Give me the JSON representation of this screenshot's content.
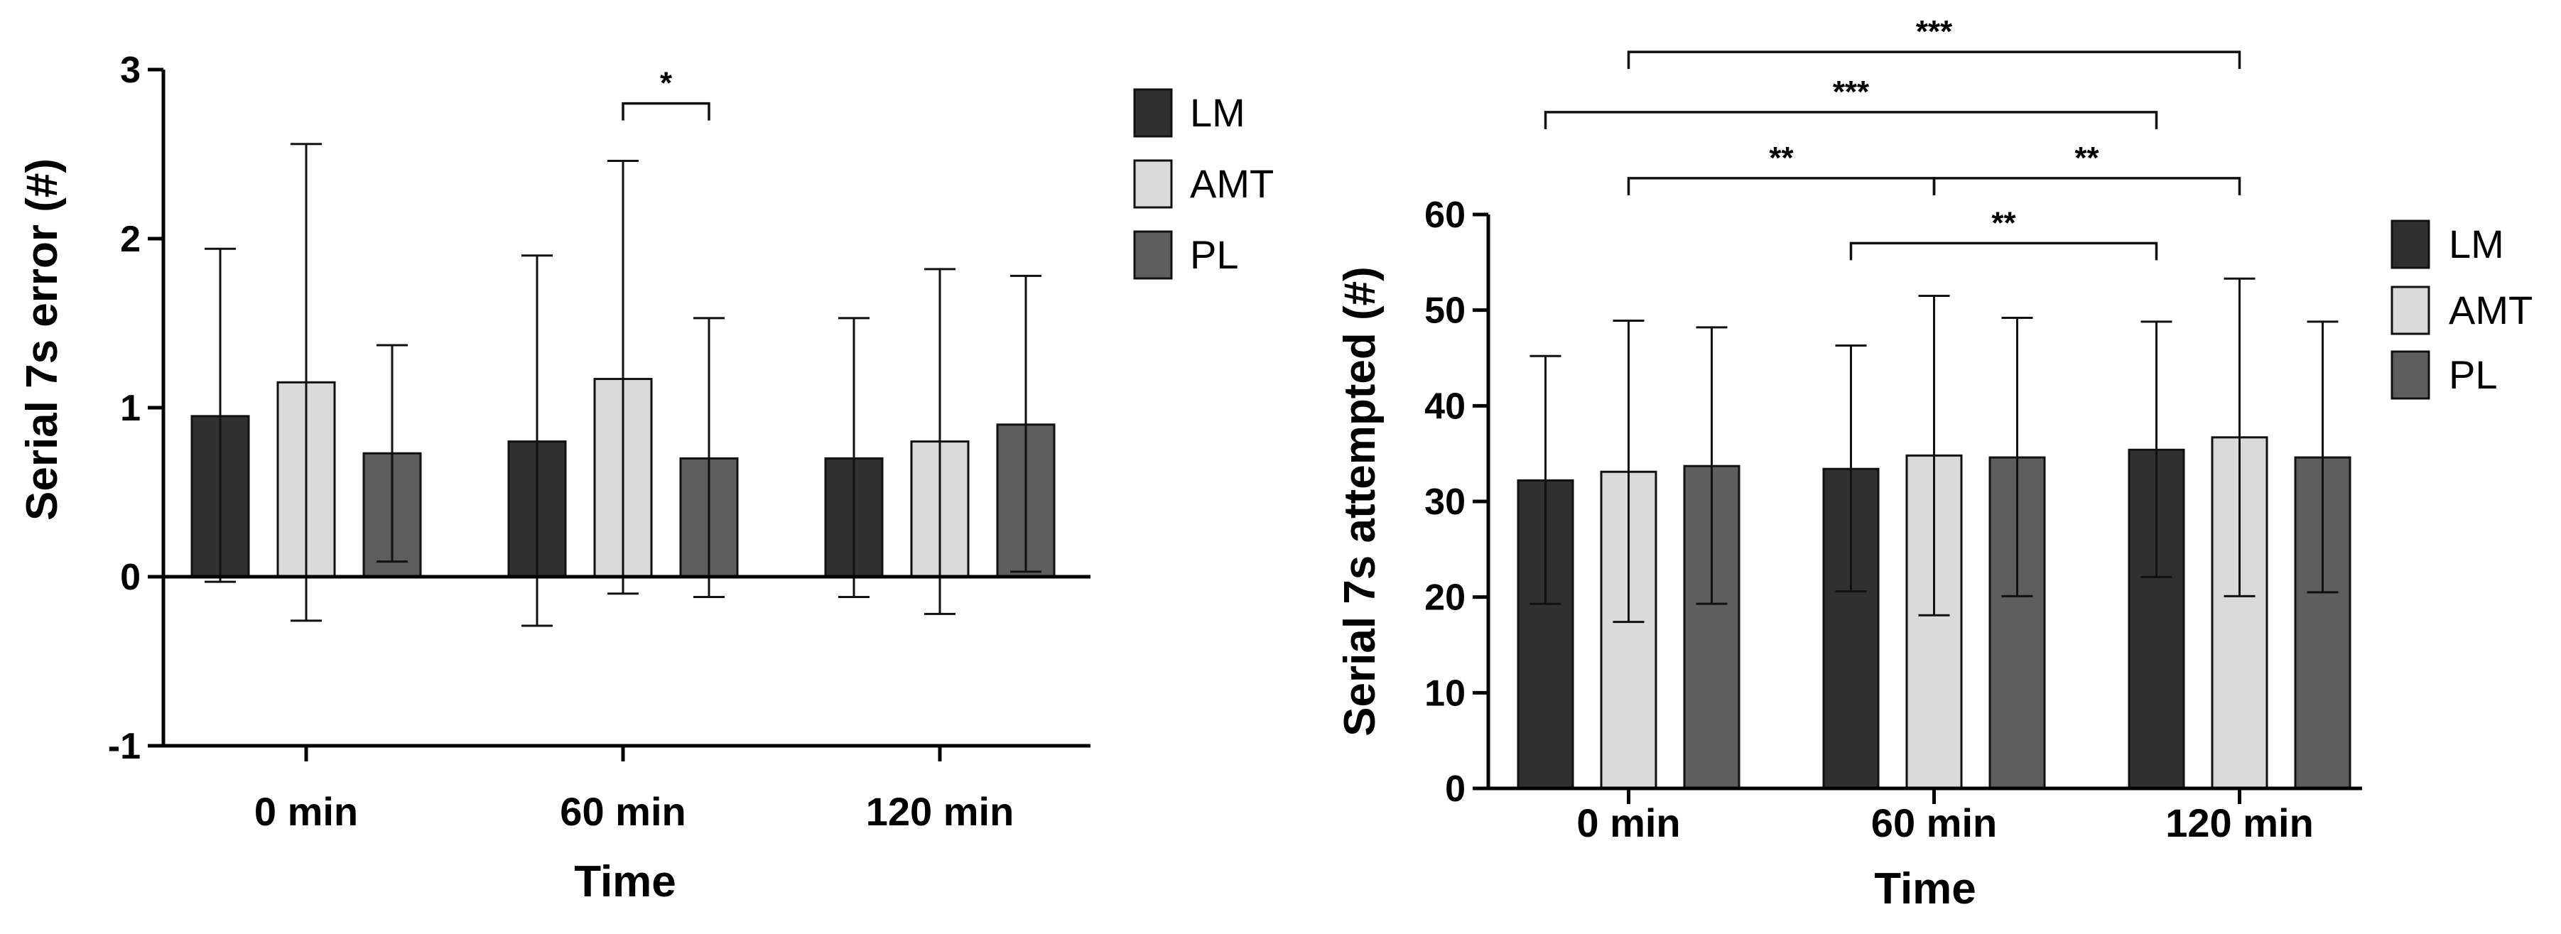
{
  "colors": {
    "LM": "#303030",
    "AMT": "#dadada",
    "PL": "#5e5e5e"
  },
  "chart_data": [
    {
      "type": "bar",
      "title": "",
      "xlabel": "Time",
      "ylabel": "Serial 7s error (#)",
      "ylim": [
        -1,
        3
      ],
      "yticks": [
        -1,
        0,
        1,
        2,
        3
      ],
      "ytick_labels": [
        "-1",
        "0",
        "1",
        "2",
        "3"
      ],
      "categories": [
        "0 min",
        "60 min",
        "120 min"
      ],
      "legend": [
        "LM",
        "AMT",
        "PL"
      ],
      "series": [
        {
          "name": "LM",
          "values": [
            0.95,
            0.8,
            0.7
          ],
          "err_upper": [
            1.94,
            1.9,
            1.53
          ],
          "err_lower": [
            -0.03,
            -0.29,
            -0.12
          ]
        },
        {
          "name": "AMT",
          "values": [
            1.15,
            1.17,
            0.8
          ],
          "err_upper": [
            2.56,
            2.46,
            1.82
          ],
          "err_lower": [
            -0.26,
            -0.1,
            -0.22
          ]
        },
        {
          "name": "PL",
          "values": [
            0.73,
            0.7,
            0.9
          ],
          "err_upper": [
            1.37,
            1.53,
            1.78
          ],
          "err_lower": [
            0.09,
            -0.12,
            0.03
          ]
        }
      ],
      "annotations": [
        {
          "label": "*",
          "from": {
            "category": 1,
            "series": 1
          },
          "to": {
            "category": 1,
            "series": 2
          },
          "y": 2.8
        }
      ]
    },
    {
      "type": "bar",
      "title": "",
      "xlabel": "Time",
      "ylabel": "Serial 7s attempted (#)",
      "ylim": [
        0,
        60
      ],
      "yticks": [
        0,
        10,
        20,
        30,
        40,
        50,
        60
      ],
      "ytick_labels": [
        "0",
        "10",
        "20",
        "30",
        "40",
        "50",
        "60"
      ],
      "categories": [
        "0 min",
        "60 min",
        "120 min"
      ],
      "legend": [
        "LM",
        "AMT",
        "PL"
      ],
      "series": [
        {
          "name": "LM",
          "values": [
            32.2,
            33.4,
            35.4
          ],
          "err_upper": [
            45.2,
            46.3,
            48.8
          ],
          "err_lower": [
            19.3,
            20.6,
            22.1
          ]
        },
        {
          "name": "AMT",
          "values": [
            33.1,
            34.8,
            36.7
          ],
          "err_upper": [
            48.9,
            51.5,
            53.3
          ],
          "err_lower": [
            17.4,
            18.1,
            20.1
          ]
        },
        {
          "name": "PL",
          "values": [
            33.7,
            34.6,
            34.6
          ],
          "err_upper": [
            48.2,
            49.2,
            48.8
          ],
          "err_lower": [
            19.3,
            20.1,
            20.5
          ]
        }
      ],
      "annotations": [
        {
          "label": "***",
          "from": {
            "category": 0,
            "series": 1
          },
          "to": {
            "category": 2,
            "series": 1
          },
          "y": 77
        },
        {
          "label": "***",
          "from": {
            "category": 0,
            "series": 0
          },
          "to": {
            "category": 2,
            "series": 0
          },
          "y": 70.7
        },
        {
          "label": "**",
          "from": {
            "category": 0,
            "series": 1
          },
          "to": {
            "category": 1,
            "series": 1
          },
          "y": 63.8
        },
        {
          "label": "**",
          "from": {
            "category": 1,
            "series": 1
          },
          "to": {
            "category": 2,
            "series": 1
          },
          "y": 63.8
        },
        {
          "label": "**",
          "from": {
            "category": 1,
            "series": 0
          },
          "to": {
            "category": 2,
            "series": 0
          },
          "y": 57
        }
      ]
    }
  ]
}
